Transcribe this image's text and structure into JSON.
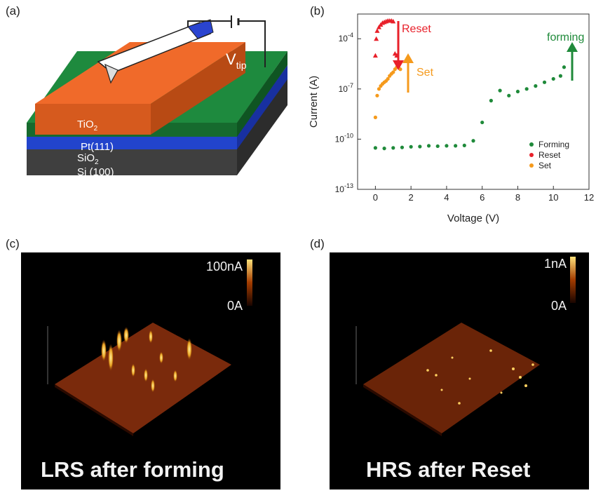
{
  "panels": {
    "a": {
      "label": "(a)",
      "layers": [
        "TiO",
        "Pt(111)",
        "SiO",
        "Si (100)"
      ],
      "tip_label": "V",
      "tip_sub": "tip"
    },
    "b": {
      "label": "(b)"
    },
    "c": {
      "label": "(c)",
      "scale_max": "100nA",
      "scale_min": "0A",
      "caption": "LRS after forming"
    },
    "d": {
      "label": "(d)",
      "scale_max": "1nA",
      "scale_min": "0A",
      "caption": "HRS after Reset"
    }
  },
  "colors": {
    "forming": "#1f8a3a",
    "reset": "#e8202a",
    "set": "#f59a1c",
    "tio2": "#f06a2a",
    "pt": "#1e8a3e",
    "sio2": "#2244cc",
    "si": "#555555"
  },
  "chart_data": {
    "type": "scatter",
    "xlabel": "Voltage (V)",
    "ylabel": "Current (A)",
    "xlim": [
      -1,
      12
    ],
    "ylim": [
      1e-12,
      0.001
    ],
    "yscale": "log",
    "x_ticks": [
      0,
      2,
      4,
      6,
      8,
      10,
      12
    ],
    "y_ticks": [
      "10^-13",
      "10^-10",
      "10^-7",
      "10^-4"
    ],
    "legend": [
      "Forming",
      "Reset",
      "Set"
    ],
    "legend_position": "bottom-right",
    "annotations": [
      "Reset",
      "Set",
      "forming"
    ],
    "series": [
      {
        "name": "Forming",
        "x": [
          0,
          0.5,
          1,
          1.5,
          2,
          2.5,
          3,
          3.5,
          4,
          4.5,
          5,
          5.5,
          6,
          6.5,
          7,
          7.5,
          8,
          8.5,
          9,
          9.5,
          10,
          10.4,
          10.6
        ],
        "y": [
          3e-11,
          2.8e-11,
          3e-11,
          3.2e-11,
          3.5e-11,
          3.6e-11,
          4e-11,
          3.8e-11,
          4e-11,
          4e-11,
          4.2e-11,
          8e-11,
          1e-09,
          2e-08,
          8e-08,
          4e-08,
          7e-08,
          1e-07,
          1.5e-07,
          2.5e-07,
          4e-07,
          6e-07,
          2e-06
        ]
      },
      {
        "name": "Reset",
        "x": [
          0,
          0.05,
          0.1,
          0.2,
          0.3,
          0.4,
          0.5,
          0.6,
          0.7,
          0.8,
          0.9,
          1.0,
          1.1,
          1.2
        ],
        "y": [
          1e-05,
          0.0001,
          0.0003,
          0.0005,
          0.0007,
          0.0009,
          0.001,
          0.0011,
          0.0012,
          0.0012,
          0.0012,
          0.0011,
          1.3e-05,
          1e-05
        ]
      },
      {
        "name": "Set",
        "x": [
          0,
          0.1,
          0.2,
          0.3,
          0.4,
          0.5,
          0.6,
          0.7,
          0.8,
          0.9,
          1.0,
          1.1,
          1.2,
          1.3,
          1.4
        ],
        "y": [
          2e-09,
          4e-08,
          1e-07,
          1.5e-07,
          2e-07,
          2.5e-07,
          3e-07,
          4e-07,
          6e-07,
          8e-07,
          1e-06,
          1.5e-06,
          2e-06,
          2e-06,
          1.5e-06
        ]
      }
    ]
  }
}
